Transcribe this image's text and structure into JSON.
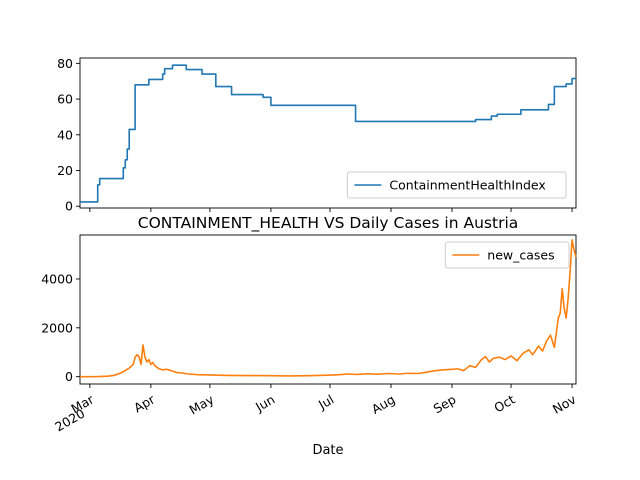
{
  "chart_data": [
    {
      "type": "line",
      "title": "",
      "xlabel": "",
      "ylabel": "",
      "ylim": [
        -1,
        83
      ],
      "yticks": [
        0,
        20,
        40,
        60,
        80
      ],
      "xticks": [
        {
          "date": "2020-03-01",
          "label": ""
        },
        {
          "date": "2020-04-01",
          "label": ""
        },
        {
          "date": "2020-05-01",
          "label": ""
        },
        {
          "date": "2020-06-01",
          "label": ""
        },
        {
          "date": "2020-07-01",
          "label": ""
        },
        {
          "date": "2020-08-01",
          "label": ""
        },
        {
          "date": "2020-09-01",
          "label": ""
        },
        {
          "date": "2020-10-01",
          "label": ""
        },
        {
          "date": "2020-11-01",
          "label": ""
        }
      ],
      "xlim": [
        "2020-02-25",
        "2020-11-03"
      ],
      "legend_position": "lower-right",
      "series": [
        {
          "name": "ContainmentHealthIndex",
          "color": "#1f77b4",
          "step": true,
          "points": [
            [
              "2020-02-25",
              2.4
            ],
            [
              "2020-03-04",
              2.4
            ],
            [
              "2020-03-05",
              12
            ],
            [
              "2020-03-06",
              15.5
            ],
            [
              "2020-03-17",
              15.5
            ],
            [
              "2020-03-18",
              21.5
            ],
            [
              "2020-03-19",
              26
            ],
            [
              "2020-03-20",
              32
            ],
            [
              "2020-03-21",
              43
            ],
            [
              "2020-03-23",
              43
            ],
            [
              "2020-03-24",
              68
            ],
            [
              "2020-03-30",
              68
            ],
            [
              "2020-03-31",
              71
            ],
            [
              "2020-04-06",
              71
            ],
            [
              "2020-04-07",
              74
            ],
            [
              "2020-04-08",
              77
            ],
            [
              "2020-04-11",
              77
            ],
            [
              "2020-04-12",
              79
            ],
            [
              "2020-04-18",
              79
            ],
            [
              "2020-04-19",
              76.5
            ],
            [
              "2020-04-26",
              76.5
            ],
            [
              "2020-04-27",
              74
            ],
            [
              "2020-05-03",
              74
            ],
            [
              "2020-05-04",
              67
            ],
            [
              "2020-05-11",
              67
            ],
            [
              "2020-05-12",
              62.5
            ],
            [
              "2020-05-27",
              62.5
            ],
            [
              "2020-05-28",
              61
            ],
            [
              "2020-05-31",
              61
            ],
            [
              "2020-06-01",
              56.5
            ],
            [
              "2020-07-13",
              56.5
            ],
            [
              "2020-07-14",
              47.5
            ],
            [
              "2020-09-12",
              47.5
            ],
            [
              "2020-09-13",
              48.5
            ],
            [
              "2020-09-20",
              48.5
            ],
            [
              "2020-09-21",
              50.5
            ],
            [
              "2020-09-23",
              50.5
            ],
            [
              "2020-09-24",
              51.5
            ],
            [
              "2020-10-05",
              51.5
            ],
            [
              "2020-10-06",
              54
            ],
            [
              "2020-10-19",
              54
            ],
            [
              "2020-10-20",
              57
            ],
            [
              "2020-10-22",
              57
            ],
            [
              "2020-10-23",
              67
            ],
            [
              "2020-10-28",
              67
            ],
            [
              "2020-10-29",
              68.5
            ],
            [
              "2020-10-31",
              68.5
            ],
            [
              "2020-11-01",
              71.5
            ],
            [
              "2020-11-03",
              71.5
            ]
          ]
        }
      ]
    },
    {
      "type": "line",
      "title": "CONTAINMENT_HEALTH VS Daily Cases in Austria",
      "xlabel": "Date",
      "ylabel": "",
      "ylim": [
        -300,
        5800
      ],
      "yticks": [
        0,
        2000,
        4000
      ],
      "xticks": [
        {
          "date": "2020-03-01",
          "label": "Mar\n2020"
        },
        {
          "date": "2020-04-01",
          "label": "Apr"
        },
        {
          "date": "2020-05-01",
          "label": "May"
        },
        {
          "date": "2020-06-01",
          "label": "Jun"
        },
        {
          "date": "2020-07-01",
          "label": "Jul"
        },
        {
          "date": "2020-08-01",
          "label": "Aug"
        },
        {
          "date": "2020-09-01",
          "label": "Sep"
        },
        {
          "date": "2020-10-01",
          "label": "Oct"
        },
        {
          "date": "2020-11-01",
          "label": "Nov"
        }
      ],
      "xlim": [
        "2020-02-25",
        "2020-11-03"
      ],
      "legend_position": "upper-right",
      "series": [
        {
          "name": "new_cases",
          "color": "#ff7f0e",
          "step": false,
          "points": [
            [
              "2020-02-25",
              0
            ],
            [
              "2020-03-05",
              5
            ],
            [
              "2020-03-10",
              20
            ],
            [
              "2020-03-13",
              50
            ],
            [
              "2020-03-15",
              100
            ],
            [
              "2020-03-17",
              160
            ],
            [
              "2020-03-19",
              250
            ],
            [
              "2020-03-21",
              350
            ],
            [
              "2020-03-23",
              500
            ],
            [
              "2020-03-24",
              800
            ],
            [
              "2020-03-25",
              900
            ],
            [
              "2020-03-26",
              820
            ],
            [
              "2020-03-27",
              500
            ],
            [
              "2020-03-28",
              1300
            ],
            [
              "2020-03-29",
              800
            ],
            [
              "2020-03-30",
              600
            ],
            [
              "2020-03-31",
              700
            ],
            [
              "2020-04-01",
              500
            ],
            [
              "2020-04-02",
              580
            ],
            [
              "2020-04-03",
              450
            ],
            [
              "2020-04-05",
              330
            ],
            [
              "2020-04-07",
              280
            ],
            [
              "2020-04-09",
              300
            ],
            [
              "2020-04-11",
              260
            ],
            [
              "2020-04-14",
              170
            ],
            [
              "2020-04-17",
              150
            ],
            [
              "2020-04-20",
              110
            ],
            [
              "2020-04-25",
              80
            ],
            [
              "2020-05-01",
              70
            ],
            [
              "2020-05-10",
              50
            ],
            [
              "2020-05-20",
              45
            ],
            [
              "2020-06-01",
              40
            ],
            [
              "2020-06-10",
              30
            ],
            [
              "2020-06-20",
              40
            ],
            [
              "2020-06-30",
              60
            ],
            [
              "2020-07-06",
              80
            ],
            [
              "2020-07-10",
              110
            ],
            [
              "2020-07-15",
              90
            ],
            [
              "2020-07-20",
              120
            ],
            [
              "2020-07-25",
              100
            ],
            [
              "2020-07-31",
              130
            ],
            [
              "2020-08-05",
              110
            ],
            [
              "2020-08-10",
              140
            ],
            [
              "2020-08-15",
              130
            ],
            [
              "2020-08-20",
              200
            ],
            [
              "2020-08-24",
              250
            ],
            [
              "2020-08-28",
              280
            ],
            [
              "2020-09-01",
              300
            ],
            [
              "2020-09-04",
              320
            ],
            [
              "2020-09-07",
              250
            ],
            [
              "2020-09-10",
              450
            ],
            [
              "2020-09-13",
              380
            ],
            [
              "2020-09-16",
              700
            ],
            [
              "2020-09-18",
              820
            ],
            [
              "2020-09-20",
              600
            ],
            [
              "2020-09-22",
              750
            ],
            [
              "2020-09-25",
              800
            ],
            [
              "2020-09-28",
              700
            ],
            [
              "2020-10-01",
              850
            ],
            [
              "2020-10-04",
              650
            ],
            [
              "2020-10-07",
              950
            ],
            [
              "2020-10-10",
              1100
            ],
            [
              "2020-10-12",
              900
            ],
            [
              "2020-10-15",
              1250
            ],
            [
              "2020-10-17",
              1050
            ],
            [
              "2020-10-19",
              1450
            ],
            [
              "2020-10-21",
              1700
            ],
            [
              "2020-10-23",
              1200
            ],
            [
              "2020-10-24",
              1800
            ],
            [
              "2020-10-25",
              2400
            ],
            [
              "2020-10-26",
              2600
            ],
            [
              "2020-10-27",
              3600
            ],
            [
              "2020-10-28",
              2800
            ],
            [
              "2020-10-29",
              2400
            ],
            [
              "2020-10-30",
              3200
            ],
            [
              "2020-10-31",
              4300
            ],
            [
              "2020-11-01",
              5600
            ],
            [
              "2020-11-02",
              5200
            ],
            [
              "2020-11-03",
              4900
            ]
          ]
        }
      ]
    }
  ]
}
